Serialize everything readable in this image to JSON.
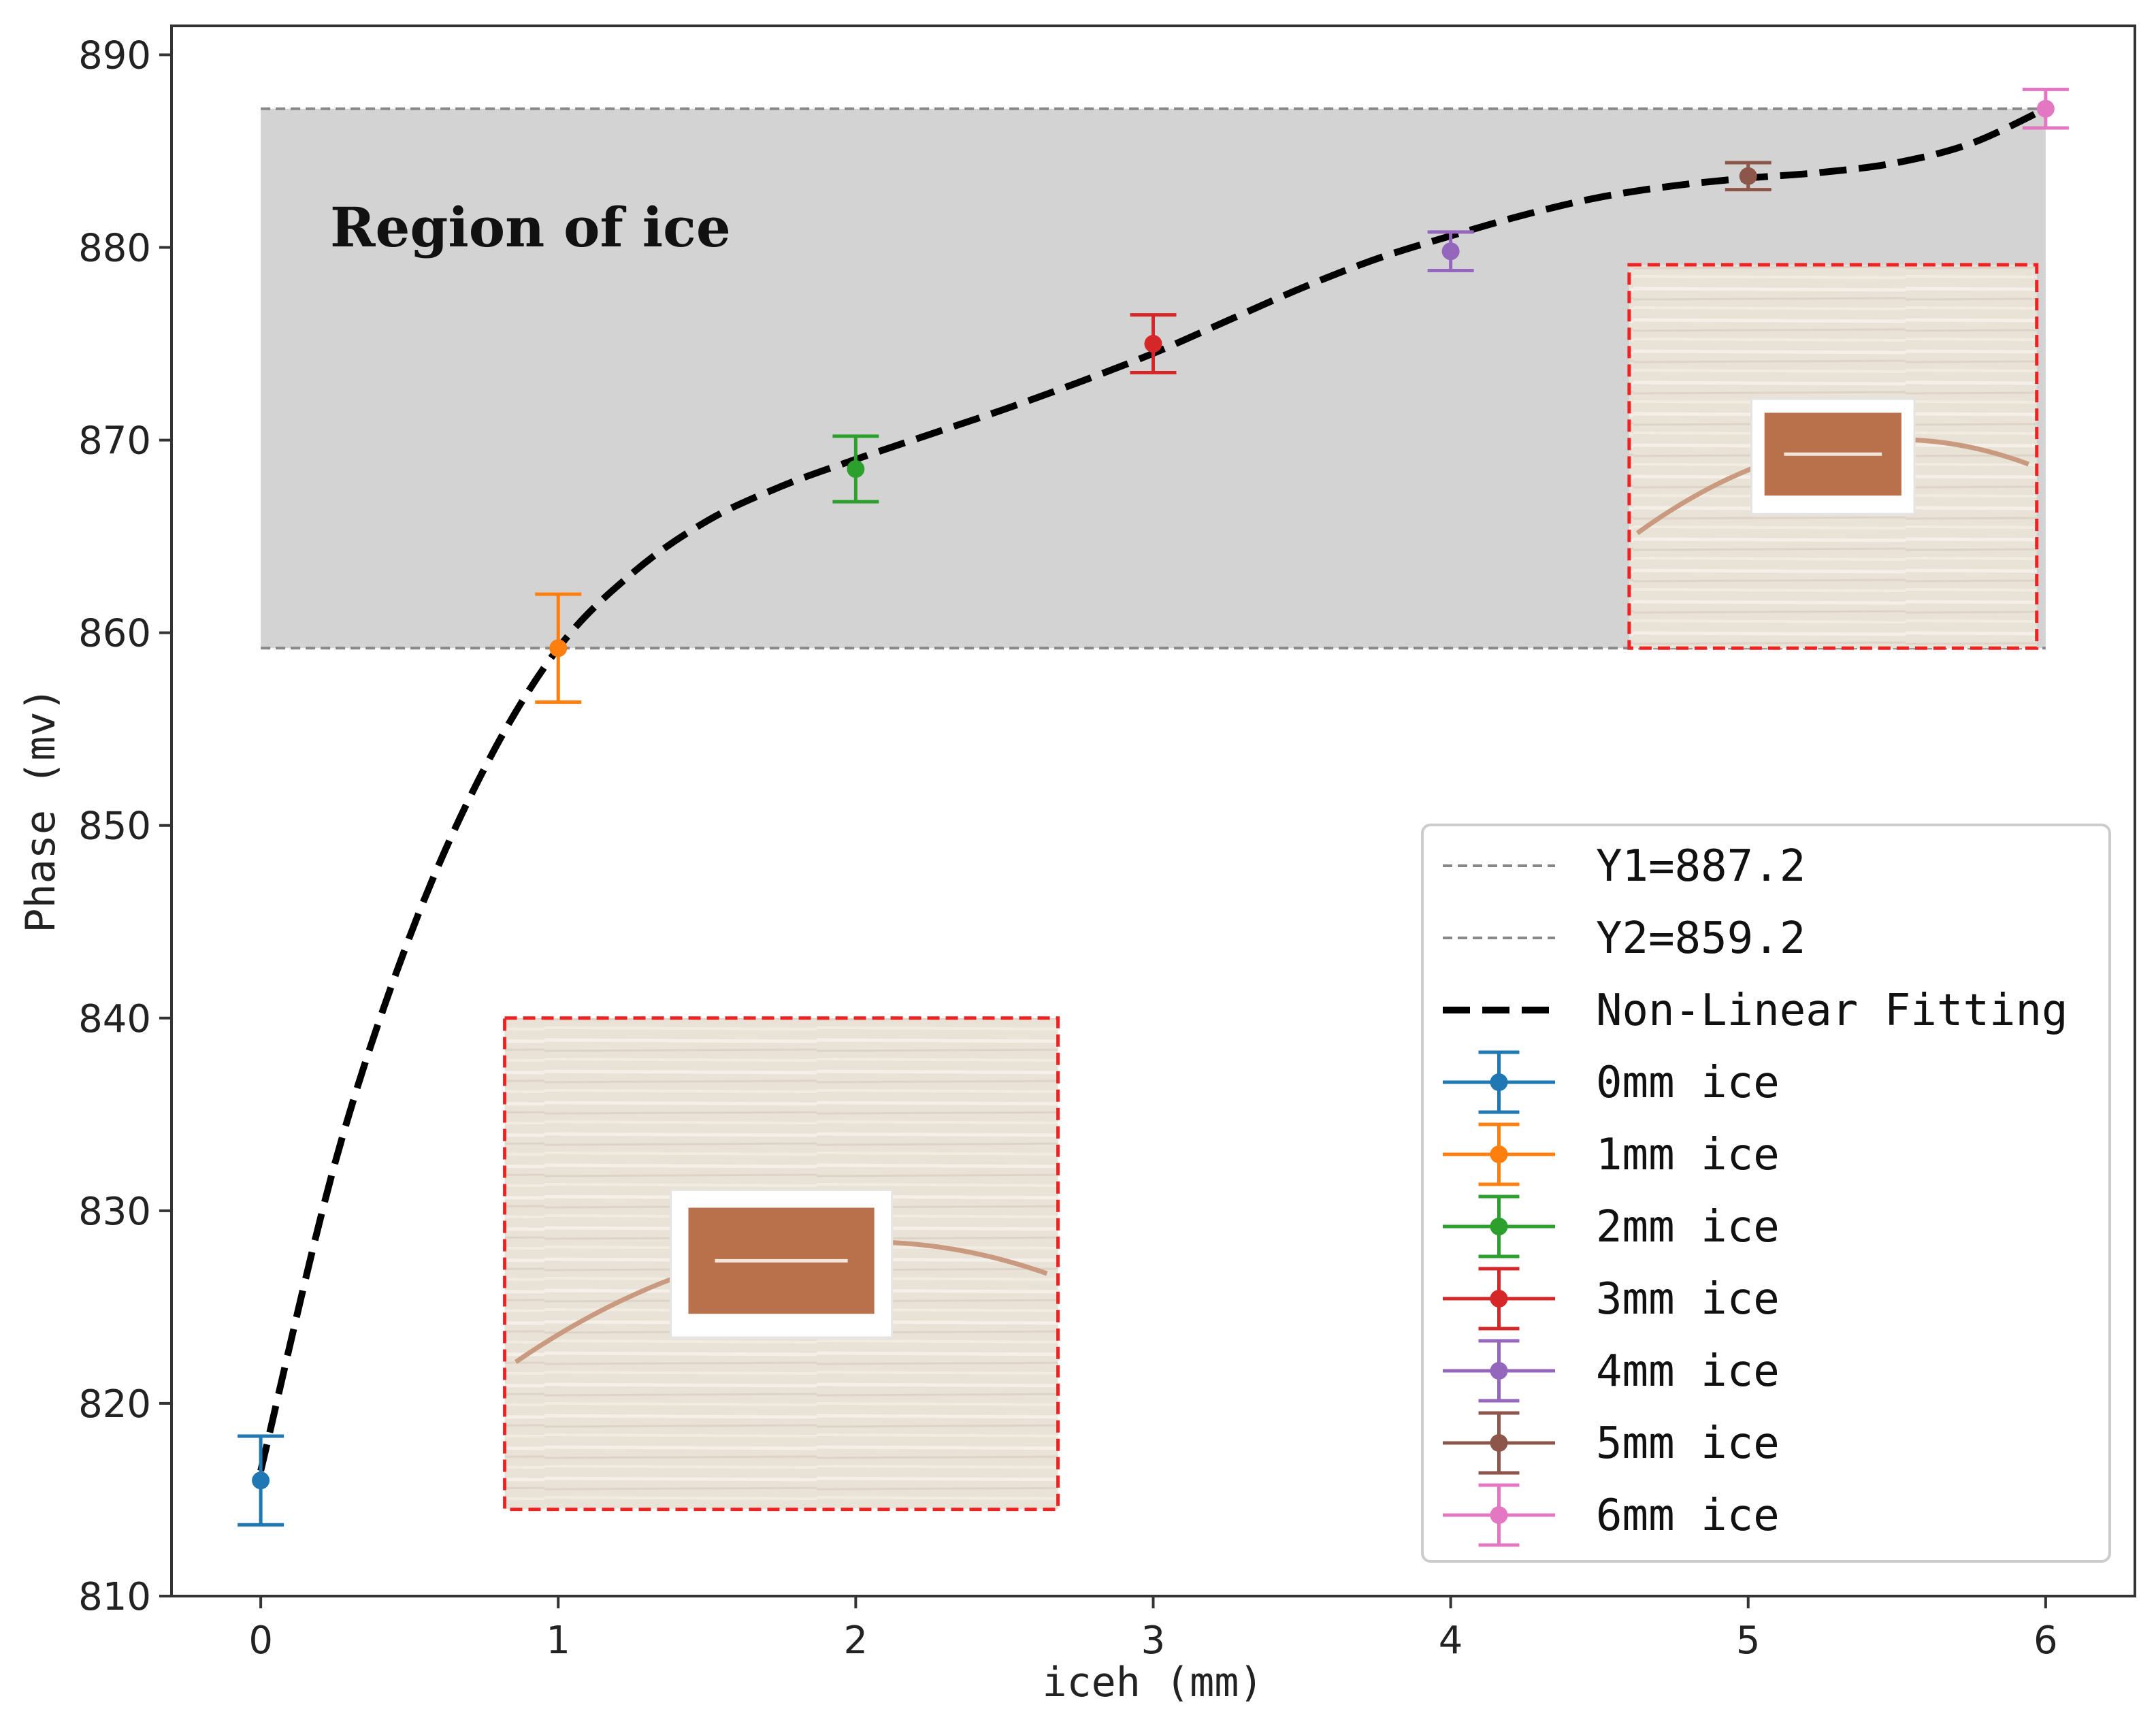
{
  "chart_data": {
    "type": "scatter",
    "xlabel": "iceh (mm)",
    "ylabel": "Phase (mv)",
    "xlim": [
      -0.3,
      6.3
    ],
    "ylim": [
      810,
      891.5
    ],
    "x_ticks": [
      "0",
      "1",
      "2",
      "3",
      "4",
      "5",
      "6"
    ],
    "y_ticks": [
      "810",
      "820",
      "830",
      "840",
      "850",
      "860",
      "870",
      "880",
      "890"
    ],
    "grid": false,
    "legend_position": "lower-right",
    "region": {
      "label": "Region of ice",
      "y_top": 887.2,
      "y_bottom": 859.2,
      "x_from": 0,
      "x_to": 6,
      "fill": "#d3d3d3"
    },
    "reference_lines": [
      {
        "name": "Y1=887.2",
        "y": 887.2,
        "color": "#888888"
      },
      {
        "name": "Y2=859.2",
        "y": 859.2,
        "color": "#888888"
      }
    ],
    "fit": {
      "name": "Non-Linear Fitting",
      "color": "#000000",
      "x": [
        0,
        0.25,
        0.5,
        0.75,
        1,
        1.25,
        1.5,
        1.75,
        2,
        2.25,
        2.5,
        2.75,
        3,
        3.25,
        3.5,
        3.75,
        4,
        4.25,
        4.5,
        4.75,
        5,
        5.25,
        5.5,
        5.75,
        6
      ],
      "y": [
        816.5,
        832.5,
        844.2,
        852.9,
        859.2,
        863.1,
        865.8,
        867.6,
        869.0,
        870.3,
        871.6,
        873.0,
        874.5,
        876.2,
        877.9,
        879.4,
        880.6,
        881.7,
        882.6,
        883.2,
        883.6,
        883.9,
        884.4,
        885.4,
        887.2
      ]
    },
    "series": [
      {
        "name": "0mm ice",
        "x": 0,
        "y": 816.0,
        "err": 2.3,
        "color": "#1f77b4"
      },
      {
        "name": "1mm ice",
        "x": 1,
        "y": 859.2,
        "err": 2.8,
        "color": "#ff7f0e"
      },
      {
        "name": "2mm ice",
        "x": 2,
        "y": 868.5,
        "err": 1.7,
        "color": "#2ca02c"
      },
      {
        "name": "3mm ice",
        "x": 3,
        "y": 875.0,
        "err": 1.5,
        "color": "#d62728"
      },
      {
        "name": "4mm ice",
        "x": 4,
        "y": 879.8,
        "err": 1.0,
        "color": "#9467bd"
      },
      {
        "name": "5mm ice",
        "x": 5,
        "y": 883.7,
        "err": 0.7,
        "color": "#8c564b"
      },
      {
        "name": "6mm ice",
        "x": 6,
        "y": 887.2,
        "err": 1.0,
        "color": "#e377c2"
      }
    ],
    "insets": [
      {
        "name": "photo-inset-upper",
        "x_from": 4.6,
        "x_to": 5.97,
        "y_top": 879.1,
        "y_bottom": 859.2
      },
      {
        "name": "photo-inset-lower",
        "x_from": 0.82,
        "x_to": 2.68,
        "y_top": 840.0,
        "y_bottom": 814.5
      }
    ]
  }
}
